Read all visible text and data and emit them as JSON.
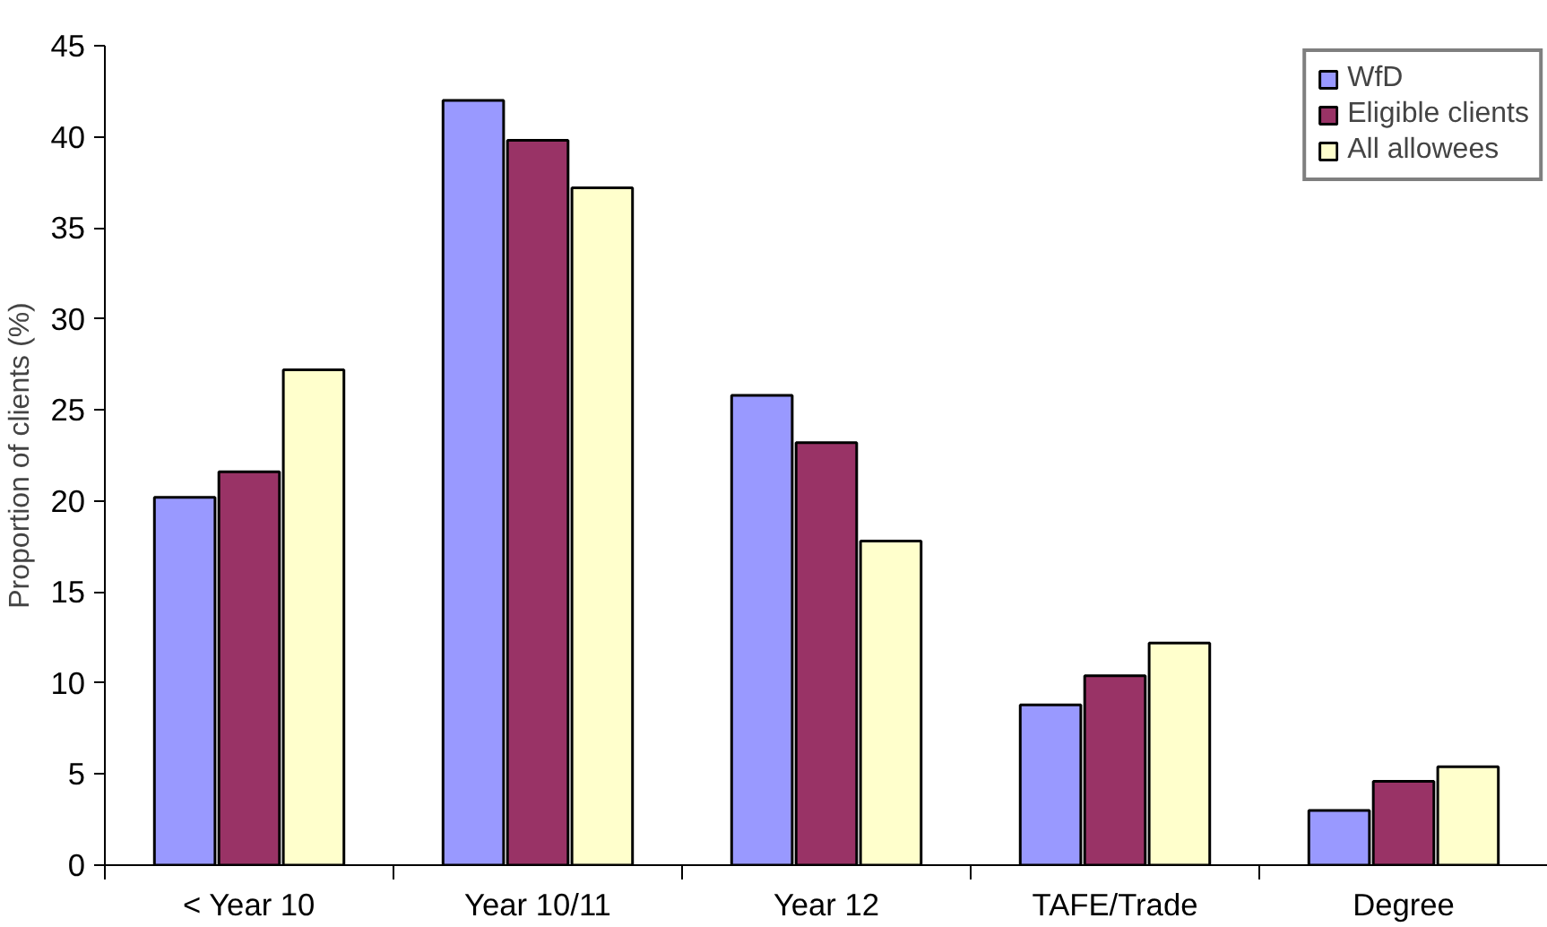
{
  "chart_data": {
    "type": "bar",
    "ylabel": "Proportion of clients (%)",
    "categories": [
      "< Year 10",
      "Year 10/11",
      "Year 12",
      "TAFE/Trade",
      "Degree"
    ],
    "series": [
      {
        "name": "WfD",
        "color": "#9999ff",
        "values": [
          20.2,
          42.0,
          25.8,
          8.8,
          3.0
        ]
      },
      {
        "name": "Eligible clients",
        "color": "#993366",
        "values": [
          21.6,
          39.8,
          23.2,
          10.4,
          4.6
        ]
      },
      {
        "name": "All allowees",
        "color": "#ffffcc",
        "values": [
          27.2,
          37.2,
          17.8,
          12.2,
          5.4
        ]
      }
    ],
    "ylim": [
      0,
      45
    ],
    "yticks": [
      0,
      5,
      10,
      15,
      20,
      25,
      30,
      35,
      40,
      45
    ],
    "grid": false,
    "legend": "top right"
  }
}
